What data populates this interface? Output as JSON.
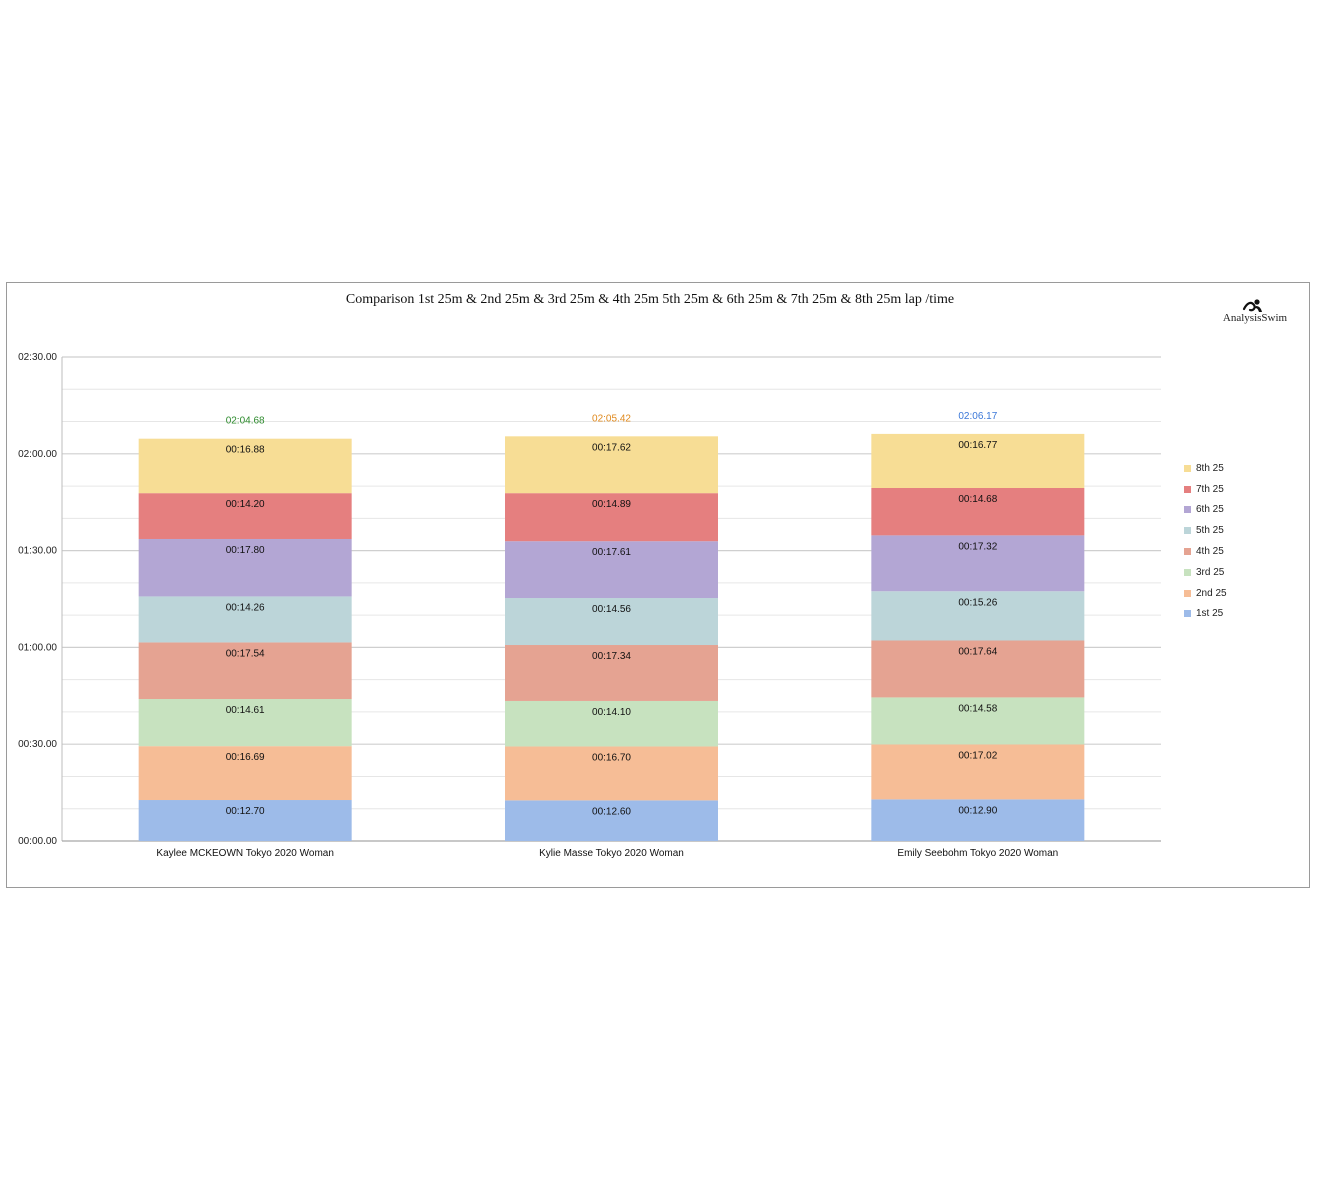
{
  "chart_data": {
    "type": "bar",
    "stacked": true,
    "title": "Comparison 1st 25m & 2nd 25m & 3rd 25m & 4th 25m 5th 25m & 6th 25m & 7th 25m & 8th 25m lap /time",
    "xlabel": "",
    "ylabel": "",
    "ylim": [
      0,
      150
    ],
    "y_ticks": [
      "00:00.00",
      "00:30.00",
      "01:00.00",
      "01:30.00",
      "02:00.00",
      "02:30.00"
    ],
    "grid": true,
    "legend_position": "right",
    "categories": [
      "Kaylee MCKEOWN Tokyo 2020 Woman",
      "Kylie Masse Tokyo 2020 Woman",
      "Emily Seebohm Tokyo 2020 Woman"
    ],
    "totals": [
      {
        "label": "02:04.68",
        "value": 124.68,
        "color": "#2e8b2e"
      },
      {
        "label": "02:05.42",
        "value": 125.42,
        "color": "#e08a1e"
      },
      {
        "label": "02:06.17",
        "value": 126.17,
        "color": "#3b78d8"
      }
    ],
    "series": [
      {
        "name": "1st 25",
        "color": "#9dbbe9",
        "values": [
          12.7,
          12.6,
          12.9
        ],
        "labels": [
          "00:12.70",
          "00:12.60",
          "00:12.90"
        ]
      },
      {
        "name": "2nd 25",
        "color": "#f6bd96",
        "values": [
          16.69,
          16.7,
          17.02
        ],
        "labels": [
          "00:16.69",
          "00:16.70",
          "00:17.02"
        ]
      },
      {
        "name": "3rd 25",
        "color": "#c7e2bf",
        "values": [
          14.61,
          14.1,
          14.58
        ],
        "labels": [
          "00:14.61",
          "00:14.10",
          "00:14.58"
        ]
      },
      {
        "name": "4th 25",
        "color": "#e5a392",
        "values": [
          17.54,
          17.34,
          17.64
        ],
        "labels": [
          "00:17.54",
          "00:17.34",
          "00:17.64"
        ]
      },
      {
        "name": "5th 25",
        "color": "#bcd5d9",
        "values": [
          14.26,
          14.56,
          15.26
        ],
        "labels": [
          "00:14.26",
          "00:14.56",
          "00:15.26"
        ]
      },
      {
        "name": "6th 25",
        "color": "#b3a6d4",
        "values": [
          17.8,
          17.61,
          17.32
        ],
        "labels": [
          "00:17.80",
          "00:17.61",
          "00:17.32"
        ]
      },
      {
        "name": "7th 25",
        "color": "#e57f7f",
        "values": [
          14.2,
          14.89,
          14.68
        ],
        "labels": [
          "00:14.20",
          "00:14.89",
          "00:14.68"
        ]
      },
      {
        "name": "8th 25",
        "color": "#f7dd95",
        "values": [
          16.88,
          17.62,
          16.77
        ],
        "labels": [
          "00:16.88",
          "00:17.62",
          "00:16.77"
        ]
      }
    ]
  },
  "brand": {
    "logo_text": "AnalysisSwim"
  }
}
